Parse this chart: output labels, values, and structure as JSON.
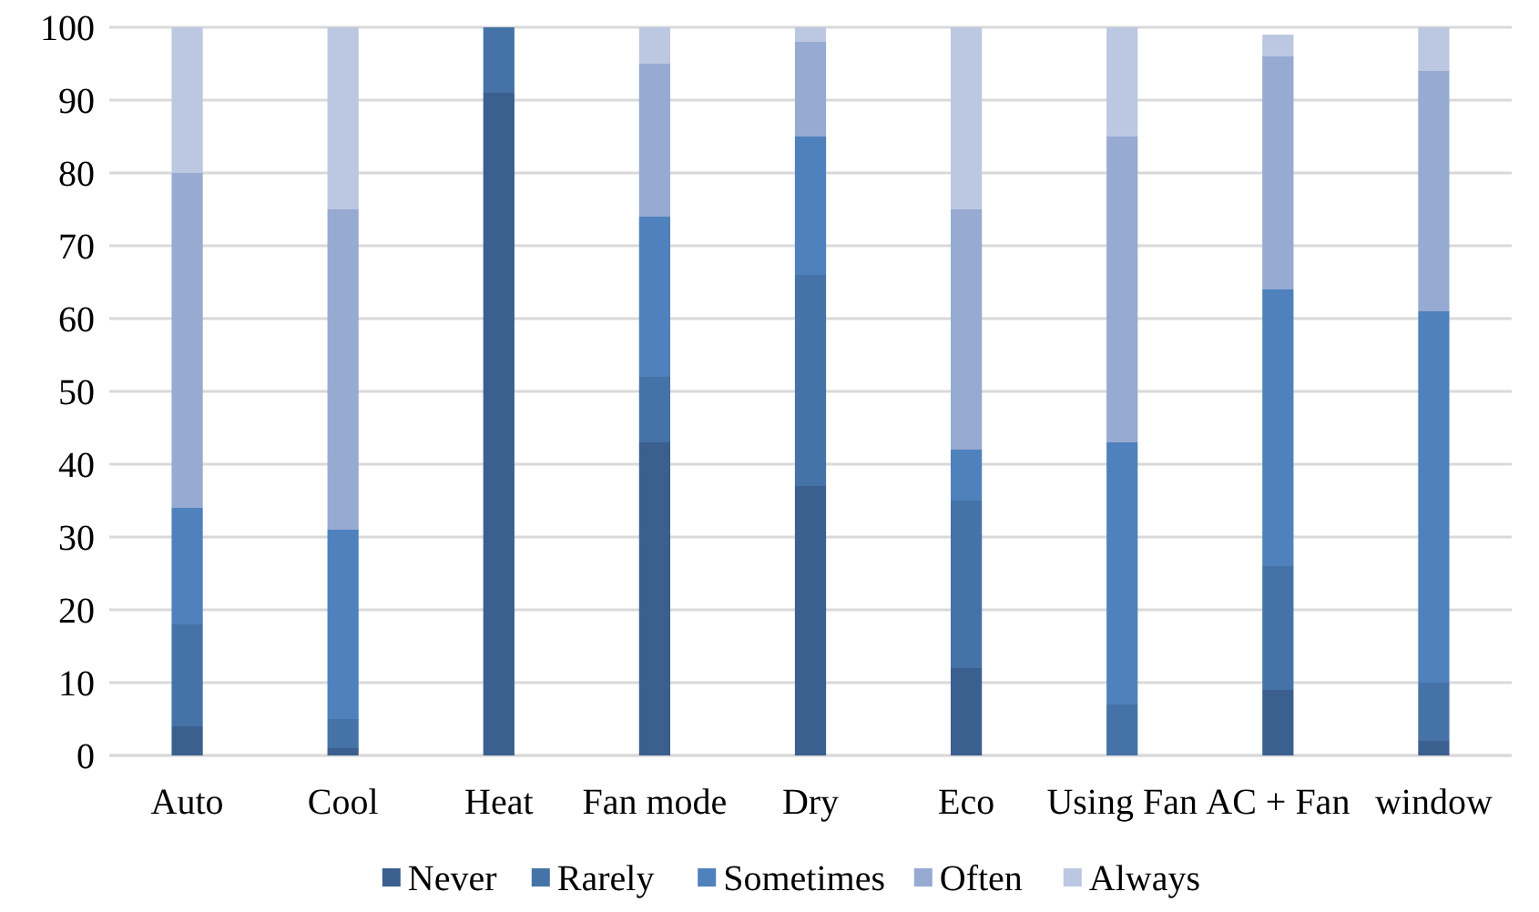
{
  "chart_data": {
    "type": "bar",
    "stacked": true,
    "categories": [
      "Auto",
      "Cool",
      "Heat",
      "Fan mode",
      "Dry",
      "Eco",
      "Using Fan",
      "AC + Fan",
      "window"
    ],
    "series": [
      {
        "name": "Never",
        "color": "#3b5f8e",
        "values": [
          4,
          1,
          91,
          43,
          37,
          12,
          0,
          9,
          2
        ]
      },
      {
        "name": "Rarely",
        "color": "#4573a7",
        "values": [
          14,
          4,
          9,
          9,
          29,
          23,
          7,
          17,
          8
        ]
      },
      {
        "name": "Sometimes",
        "color": "#4f81bd",
        "values": [
          16,
          26,
          0,
          22,
          19,
          7,
          36,
          38,
          51
        ]
      },
      {
        "name": "Often",
        "color": "#97aad1",
        "values": [
          46,
          44,
          0,
          21,
          13,
          33,
          42,
          32,
          33
        ]
      },
      {
        "name": "Always",
        "color": "#bcc8e1",
        "values": [
          20,
          25,
          0,
          5,
          2,
          25,
          15,
          3,
          6
        ]
      }
    ],
    "ylim": [
      0,
      100
    ],
    "yticks": [
      0,
      10,
      20,
      30,
      40,
      50,
      60,
      70,
      80,
      90,
      100
    ],
    "grid": "y",
    "legend": "bottom"
  }
}
